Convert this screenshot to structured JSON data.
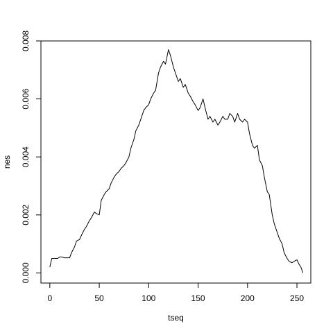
{
  "chart_data": {
    "type": "line",
    "title": "",
    "xlabel": "tseq",
    "ylabel": "nes",
    "xlim": [
      -9,
      264
    ],
    "ylim": [
      -0.00035,
      0.008
    ],
    "xticks": [
      0,
      50,
      100,
      150,
      200,
      250
    ],
    "xtick_labels": [
      "0",
      "50",
      "100",
      "150",
      "200",
      "250"
    ],
    "yticks": [
      0.0,
      0.002,
      0.004,
      0.006,
      0.008
    ],
    "ytick_labels": [
      "0.000",
      "0.002",
      "0.004",
      "0.006",
      "0.008"
    ],
    "grid": false,
    "legend": "none",
    "series": [
      {
        "x": [
          0,
          2,
          5,
          8,
          10,
          12,
          15,
          18,
          20,
          22,
          25,
          27,
          30,
          32,
          35,
          37,
          40,
          42,
          45,
          47,
          50,
          52,
          55,
          57,
          60,
          62,
          65,
          67,
          70,
          72,
          75,
          77,
          80,
          82,
          85,
          87,
          90,
          92,
          95,
          97,
          100,
          102,
          105,
          107,
          110,
          112,
          115,
          117,
          120,
          122,
          125,
          127,
          130,
          132,
          135,
          137,
          140,
          142,
          145,
          147,
          150,
          152,
          155,
          157,
          160,
          162,
          165,
          167,
          170,
          172,
          175,
          177,
          180,
          182,
          185,
          187,
          190,
          192,
          195,
          197,
          200,
          202,
          205,
          207,
          210,
          212,
          215,
          217,
          220,
          222,
          225,
          227,
          230,
          232,
          235,
          237,
          240,
          242,
          245,
          247,
          250,
          252,
          254,
          256
        ],
        "values": [
          0.0002,
          0.0005,
          0.0005,
          0.0005,
          0.00055,
          0.00055,
          0.00052,
          0.00052,
          0.00052,
          0.0007,
          0.0009,
          0.0011,
          0.00115,
          0.0013,
          0.0015,
          0.0016,
          0.0018,
          0.0019,
          0.0021,
          0.00205,
          0.002,
          0.0025,
          0.0027,
          0.0028,
          0.0029,
          0.0031,
          0.0033,
          0.0034,
          0.0035,
          0.0036,
          0.0037,
          0.0038,
          0.004,
          0.0043,
          0.0046,
          0.0049,
          0.0051,
          0.0053,
          0.0056,
          0.0057,
          0.0058,
          0.006,
          0.0062,
          0.0063,
          0.0069,
          0.0071,
          0.0073,
          0.0072,
          0.0077,
          0.0075,
          0.0071,
          0.0069,
          0.0066,
          0.0067,
          0.0064,
          0.0065,
          0.0062,
          0.0061,
          0.0059,
          0.0058,
          0.0056,
          0.0057,
          0.006,
          0.0057,
          0.0053,
          0.0054,
          0.0052,
          0.0053,
          0.0051,
          0.0052,
          0.0054,
          0.0053,
          0.0053,
          0.0055,
          0.0054,
          0.0052,
          0.0055,
          0.0053,
          0.0052,
          0.0053,
          0.0052,
          0.0048,
          0.0044,
          0.0043,
          0.0044,
          0.0039,
          0.0037,
          0.0033,
          0.0028,
          0.0027,
          0.002,
          0.0017,
          0.0014,
          0.0012,
          0.001,
          0.0007,
          0.0005,
          0.0004,
          0.00035,
          0.0004,
          0.00045,
          0.0003,
          0.0002,
          0.0
        ]
      }
    ]
  }
}
